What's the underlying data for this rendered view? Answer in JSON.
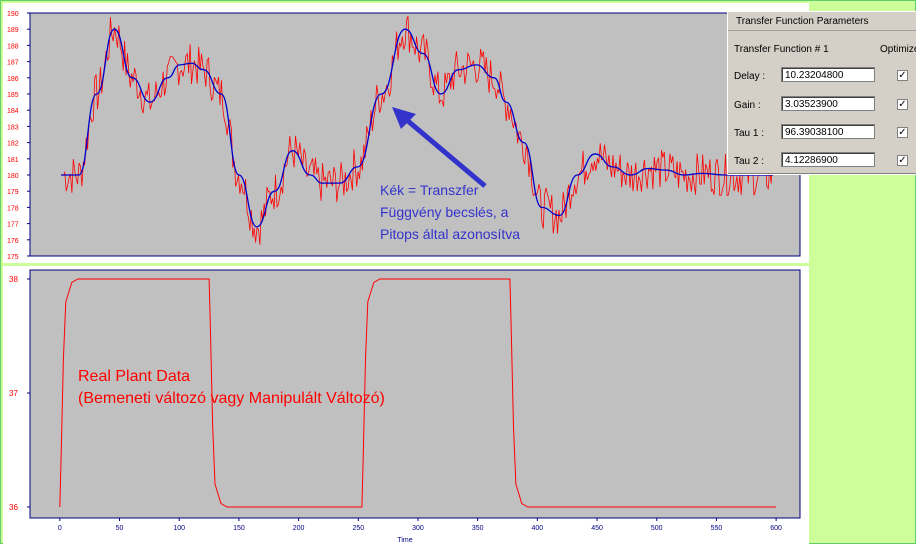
{
  "panel": {
    "title": "Transfer Function Parameters",
    "subtitle": "Transfer Function # 1",
    "optimize_label": "Optimize",
    "params": [
      {
        "label": "Delay :",
        "value": "10.23204800",
        "checked": true
      },
      {
        "label": "Gain  :",
        "value": "3.03523900",
        "checked": true
      },
      {
        "label": "Tau 1 :",
        "value": "96.39038100",
        "checked": true
      },
      {
        "label": "Tau 2 :",
        "value": "4.12286900",
        "checked": true
      }
    ]
  },
  "annotations": {
    "top_lines": [
      "Kék = Transzfer",
      "Függvény becslés, a",
      "Pitops által azonosítva"
    ],
    "bottom_lines": [
      "Real Plant Data",
      "(Bemeneti változó vagy  Manipulált Változó)"
    ]
  },
  "colors": {
    "measured": "#ff0000",
    "model": "#0000cc",
    "plot_bg": "#c0c0c0",
    "arrow": "#3333cc"
  },
  "chart_data": [
    {
      "type": "line",
      "ylim": [
        175,
        190
      ],
      "yticks": [
        "175",
        "176",
        "177",
        "178",
        "179",
        "180",
        "181",
        "182",
        "183",
        "184",
        "185",
        "186",
        "187",
        "188",
        "189",
        "190"
      ],
      "x": [
        0,
        15,
        30,
        45,
        60,
        75,
        90,
        100,
        110,
        120,
        135,
        150,
        165,
        180,
        195,
        210,
        220,
        235,
        250,
        270,
        290,
        305,
        320,
        335,
        350,
        365,
        375,
        390,
        405,
        420,
        435,
        450,
        465,
        480,
        495,
        510,
        525,
        540,
        560,
        580,
        600
      ],
      "series": [
        {
          "values": [
            180,
            180,
            185,
            189,
            186,
            184.5,
            186,
            186.8,
            186.9,
            186.5,
            185,
            180,
            176.8,
            179,
            181.5,
            180,
            179.5,
            179.5,
            180.5,
            185,
            189,
            187.5,
            185,
            186.5,
            186.8,
            186,
            184.5,
            182,
            178,
            177.5,
            180,
            181.3,
            180.5,
            180,
            180.4,
            180.3,
            180,
            180.1,
            180,
            180,
            180
          ]
        }
      ]
    },
    {
      "type": "line",
      "xlabel": "Time",
      "xlim": [
        -25,
        620
      ],
      "ylim": [
        35.95,
        38.05
      ],
      "xticks": [
        "0",
        "50",
        "100",
        "150",
        "200",
        "250",
        "300",
        "350",
        "400",
        "450",
        "500",
        "550",
        "600"
      ],
      "yticks": [
        "36",
        "37",
        "38"
      ],
      "x": [
        0,
        1,
        3,
        5,
        10,
        15,
        20,
        125,
        126,
        128,
        130,
        135,
        140,
        145,
        253,
        254,
        256,
        258,
        263,
        268,
        273,
        377,
        378,
        380,
        382,
        387,
        392,
        397,
        600
      ],
      "series": [
        {
          "values": [
            36,
            36.4,
            37.3,
            37.8,
            37.97,
            38,
            38,
            38,
            37.6,
            36.7,
            36.2,
            36.03,
            36,
            36,
            36,
            36.4,
            37.3,
            37.8,
            37.97,
            38,
            38,
            38,
            37.6,
            36.7,
            36.2,
            36.03,
            36,
            36,
            36
          ]
        }
      ]
    }
  ]
}
